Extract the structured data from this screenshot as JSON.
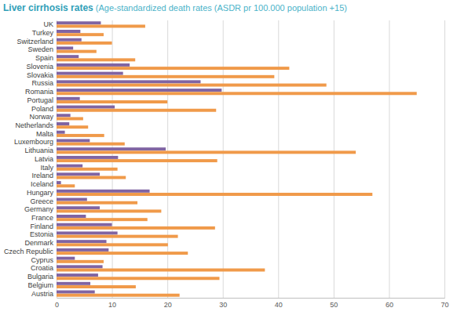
{
  "chart_data": {
    "type": "bar",
    "orientation": "horizontal",
    "title": "Liver cirrhosis rates",
    "subtitle": "(Age-standardized death rates (ASDR pr 100.000 population +15)",
    "categories": [
      "UK",
      "Turkey",
      "Switzerland",
      "Sweden",
      "Spain",
      "Slovenia",
      "Slovakia",
      "Russia",
      "Romania",
      "Portugal",
      "Poland",
      "Norway",
      "Netherlands",
      "Malta",
      "Luxembourg",
      "Lithuania",
      "Latvia",
      "Italy",
      "Ireland",
      "Iceland",
      "Hungary",
      "Greece",
      "Germany",
      "France",
      "Finland",
      "Estonia",
      "Denmark",
      "Czech Republic",
      "Cyprus",
      "Croatia",
      "Bulgaria",
      "Belgium",
      "Austria"
    ],
    "series": [
      {
        "color": "#8064a2",
        "values": [
          8,
          4.3,
          4.5,
          3,
          4,
          13.2,
          12,
          26,
          29.8,
          4.2,
          10.5,
          2.5,
          2.3,
          1.5,
          6,
          19.7,
          11.1,
          4.7,
          7.8,
          0.8,
          16.8,
          5.5,
          7.8,
          5.3,
          10,
          11,
          9,
          9.4,
          3.3,
          8.3,
          7.5,
          6.1,
          6.9
        ]
      },
      {
        "color": "#f09a4a",
        "values": [
          16,
          8.5,
          10,
          7.2,
          14.2,
          42,
          39.3,
          48.7,
          65,
          20,
          28.8,
          4.8,
          5.7,
          8.6,
          12.3,
          54,
          29,
          11,
          12.5,
          3.3,
          57,
          14.6,
          18.9,
          16.4,
          28.6,
          21.9,
          20.1,
          23.7,
          8.5,
          37.6,
          29.4,
          14.3,
          22.2
        ]
      }
    ],
    "xlim": [
      0,
      70
    ],
    "xticks": [
      0,
      10,
      20,
      30,
      40,
      50,
      60,
      70
    ],
    "grid": true
  }
}
